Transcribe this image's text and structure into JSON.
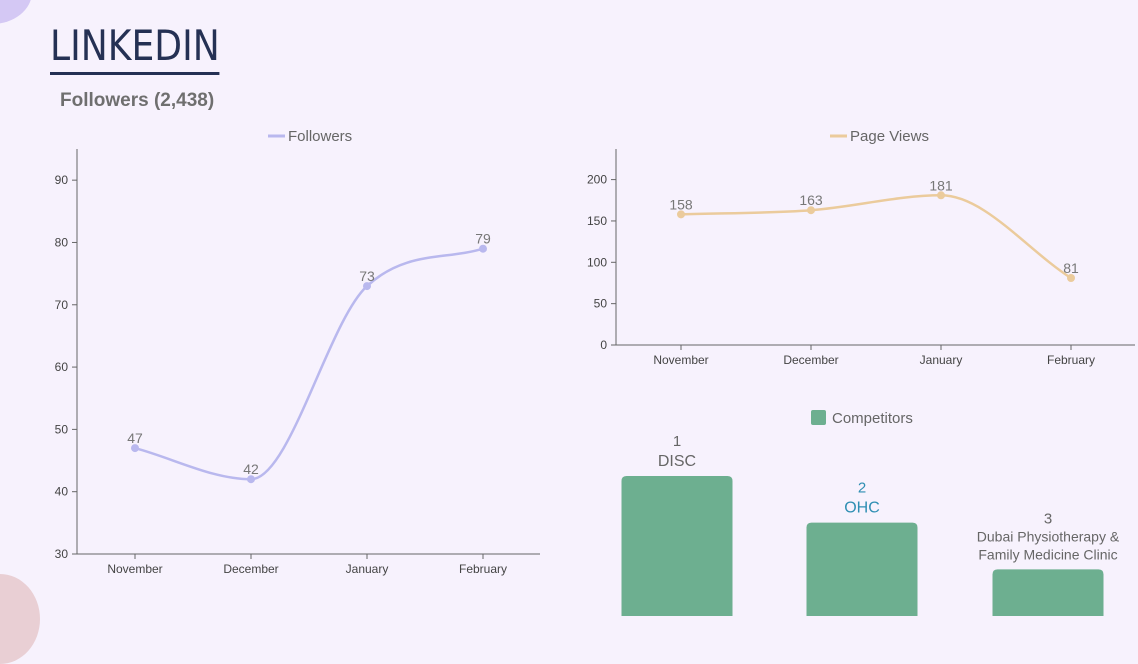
{
  "page": {
    "title": "LINKEDIN",
    "subtitle": "Followers (2,438)"
  },
  "colors": {
    "followers": "#b9b8ee",
    "page_views": "#ebcb9c",
    "competitors": "#6daf90",
    "highlight_text": "#2f8fb3",
    "label_text": "#777777",
    "axis": "#666666"
  },
  "chart_data": [
    {
      "type": "line",
      "name": "followers",
      "legend": "Followers",
      "categories": [
        "November",
        "December",
        "January",
        "February"
      ],
      "values": [
        47,
        42,
        73,
        79
      ],
      "yticks": [
        30,
        40,
        50,
        60,
        70,
        80,
        90
      ],
      "ylim": [
        30,
        95
      ],
      "grid": false,
      "legend_position": "top"
    },
    {
      "type": "line",
      "name": "page_views",
      "legend": "Page Views",
      "categories": [
        "November",
        "December",
        "January",
        "February"
      ],
      "values": [
        158,
        163,
        181,
        81
      ],
      "yticks": [
        0,
        50,
        100,
        150,
        200
      ],
      "ylim": [
        0,
        237
      ],
      "grid": false,
      "legend_position": "top"
    },
    {
      "type": "bar",
      "name": "competitors",
      "legend": "Competitors",
      "categories": [
        "DISC",
        "OHC",
        "Dubai Physiotherapy & Family Medicine Clinic"
      ],
      "ranks": [
        "1",
        "2",
        "3"
      ],
      "values": [
        3,
        2,
        1
      ],
      "highlighted": "OHC",
      "legend_position": "top"
    }
  ]
}
